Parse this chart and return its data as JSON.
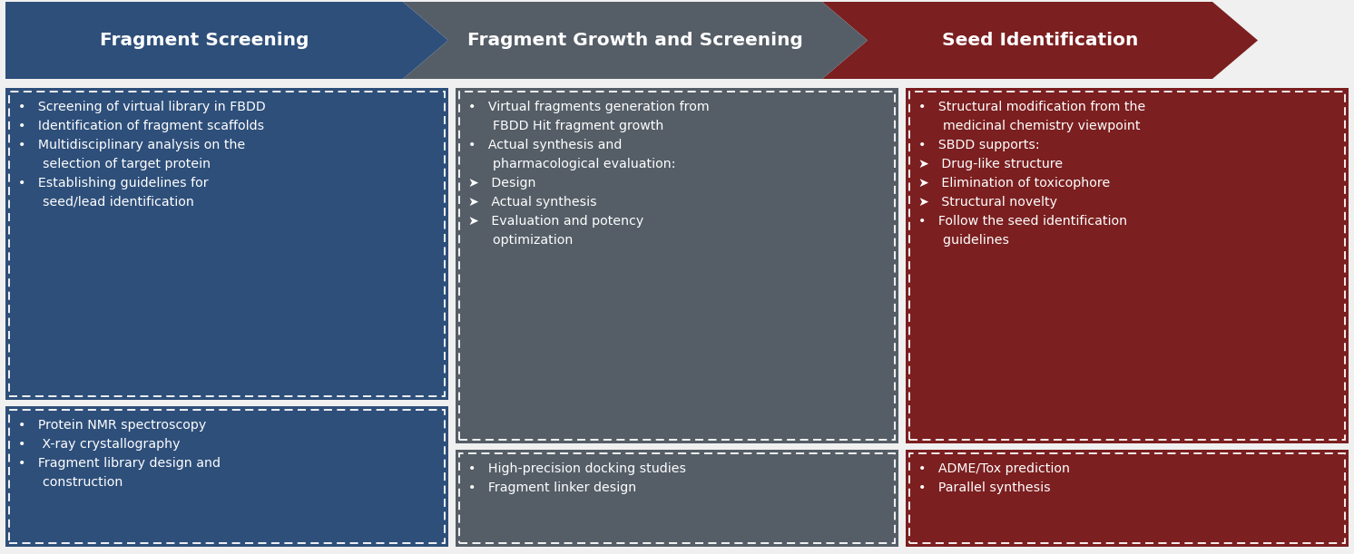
{
  "bg_color": "#f0f0f0",
  "arrow_colors": [
    "#2e4f7a",
    "#555e67",
    "#7b1f20"
  ],
  "arrow_titles": [
    "Fragment Screening",
    "Fragment Growth and Screening",
    "Seed Identification"
  ],
  "box_bg_col1": "#2e4f7a",
  "box_bg_col2": "#555e67",
  "box_bg_col3": "#7b1f20",
  "text_color": "#ffffff",
  "col1_box1_lines": [
    "•   Screening of virtual library in FBDD",
    "•   Identification of fragment scaffolds",
    "•   Multidisciplinary analysis on the",
    "      selection of target protein",
    "•   Establishing guidelines for",
    "      seed/lead identification"
  ],
  "col1_box2_lines": [
    "•   Protein NMR spectroscopy",
    "•    X-ray crystallography",
    "•   Fragment library design and",
    "      construction"
  ],
  "col2_box1_lines": [
    "•   Virtual fragments generation from",
    "      FBDD Hit fragment growth",
    "•   Actual synthesis and",
    "      pharmacological evaluation:",
    "➤   Design",
    "➤   Actual synthesis",
    "➤   Evaluation and potency",
    "      optimization"
  ],
  "col2_box2_lines": [
    "•   High-precision docking studies",
    "•   Fragment linker design"
  ],
  "col3_box1_lines": [
    "•   Structural modification from the",
    "      medicinal chemistry viewpoint",
    "•   SBDD supports:",
    "➤   Drug-like structure",
    "➤   Elimination of toxicophore",
    "➤   Structural novelty",
    "•   Follow the seed identification",
    "      guidelines"
  ],
  "col3_box2_lines": [
    "•   ADME/Tox prediction",
    "•   Parallel synthesis"
  ]
}
